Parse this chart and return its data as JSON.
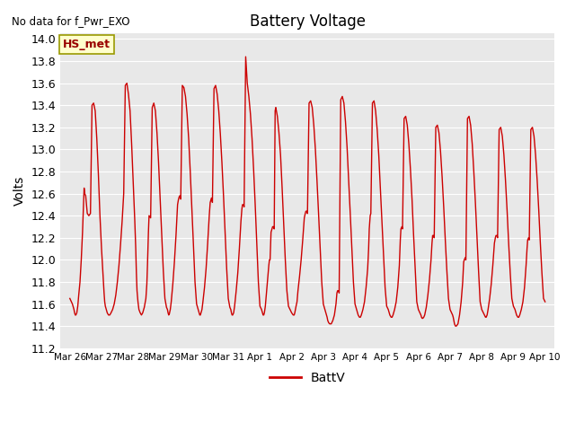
{
  "title": "Battery Voltage",
  "top_left_text": "No data for f_Pwr_EXO",
  "ylabel": "Volts",
  "ylim": [
    11.2,
    14.05
  ],
  "yticks": [
    11.2,
    11.4,
    11.6,
    11.8,
    12.0,
    12.2,
    12.4,
    12.6,
    12.8,
    13.0,
    13.2,
    13.4,
    13.6,
    13.8,
    14.0
  ],
  "line_color": "#cc0000",
  "line_width": 1.0,
  "legend_label": "BattV",
  "hs_met_label": "HS_met",
  "hs_met_bg": "#ffffcc",
  "hs_met_border": "#999900",
  "plot_bg": "#e8e8e8",
  "fig_bg": "#ffffff",
  "x_tick_labels": [
    "Mar 26",
    "Mar 27",
    "Mar 28",
    "Mar 29",
    "Mar 30",
    "Mar 31",
    "Apr 1",
    "Apr 2",
    "Apr 3",
    "Apr 4",
    "Apr 5",
    "Apr 6",
    "Apr 7",
    "Apr 8",
    "Apr 9",
    "Apr 10"
  ],
  "x_tick_positions": [
    0,
    1,
    2,
    3,
    4,
    5,
    6,
    7,
    8,
    9,
    10,
    11,
    12,
    13,
    14,
    15
  ],
  "data_x": [
    0.0,
    0.08,
    0.13,
    0.15,
    0.17,
    0.19,
    0.22,
    0.25,
    0.28,
    0.32,
    0.36,
    0.4,
    0.43,
    0.45,
    0.47,
    0.5,
    0.55,
    0.6,
    0.65,
    0.7,
    0.75,
    0.8,
    0.85,
    0.9,
    0.95,
    1.0,
    1.05,
    1.08,
    1.1,
    1.12,
    1.15,
    1.18,
    1.22,
    1.26,
    1.3,
    1.35,
    1.4,
    1.45,
    1.5,
    1.55,
    1.6,
    1.65,
    1.7,
    1.75,
    1.8,
    1.85,
    1.9,
    1.95,
    2.0,
    2.05,
    2.08,
    2.1,
    2.12,
    2.15,
    2.18,
    2.22,
    2.26,
    2.3,
    2.35,
    2.4,
    2.43,
    2.45,
    2.48,
    2.5,
    2.55,
    2.6,
    2.65,
    2.7,
    2.75,
    2.8,
    2.85,
    2.9,
    2.95,
    3.0,
    3.05,
    3.08,
    3.1,
    3.12,
    3.14,
    3.17,
    3.2,
    3.25,
    3.3,
    3.35,
    3.4,
    3.43,
    3.45,
    3.47,
    3.5,
    3.55,
    3.6,
    3.65,
    3.7,
    3.75,
    3.8,
    3.85,
    3.9,
    3.95,
    4.0,
    4.05,
    4.08,
    4.1,
    4.12,
    4.14,
    4.17,
    4.2,
    4.25,
    4.3,
    4.35,
    4.4,
    4.43,
    4.45,
    4.47,
    4.5,
    4.55,
    4.6,
    4.65,
    4.7,
    4.75,
    4.8,
    4.85,
    4.9,
    4.95,
    5.0,
    5.05,
    5.08,
    5.1,
    5.12,
    5.14,
    5.17,
    5.2,
    5.25,
    5.3,
    5.35,
    5.4,
    5.43,
    5.45,
    5.48,
    5.5,
    5.55,
    5.6,
    5.65,
    5.7,
    5.75,
    5.8,
    5.85,
    5.9,
    5.95,
    6.0,
    6.05,
    6.08,
    6.1,
    6.12,
    6.14,
    6.17,
    6.2,
    6.25,
    6.28,
    6.3,
    6.32,
    6.35,
    6.38,
    6.4,
    6.43,
    6.45,
    6.48,
    6.5,
    6.55,
    6.6,
    6.65,
    6.7,
    6.75,
    6.8,
    6.85,
    6.9,
    6.95,
    7.0,
    7.05,
    7.08,
    7.1,
    7.12,
    7.14,
    7.17,
    7.2,
    7.25,
    7.3,
    7.35,
    7.4,
    7.43,
    7.45,
    7.48,
    7.5,
    7.55,
    7.6,
    7.65,
    7.7,
    7.75,
    7.8,
    7.85,
    7.9,
    7.95,
    8.0,
    8.05,
    8.08,
    8.1,
    8.12,
    8.14,
    8.17,
    8.2,
    8.25,
    8.3,
    8.35,
    8.4,
    8.43,
    8.45,
    8.48,
    8.5,
    8.55,
    8.6,
    8.65,
    8.7,
    8.75,
    8.8,
    8.85,
    8.9,
    8.95,
    9.0,
    9.05,
    9.08,
    9.1,
    9.12,
    9.14,
    9.17,
    9.2,
    9.25,
    9.3,
    9.35,
    9.4,
    9.43,
    9.45,
    9.48,
    9.5,
    9.55,
    9.6,
    9.65,
    9.7,
    9.75,
    9.8,
    9.85,
    9.9,
    9.95,
    10.0,
    10.05,
    10.08,
    10.1,
    10.12,
    10.14,
    10.17,
    10.2,
    10.25,
    10.3,
    10.35,
    10.4,
    10.43,
    10.45,
    10.48,
    10.5,
    10.55,
    10.6,
    10.65,
    10.7,
    10.75,
    10.8,
    10.85,
    10.9,
    10.95,
    11.0,
    11.05,
    11.08,
    11.1,
    11.12,
    11.14,
    11.17,
    11.2,
    11.25,
    11.3,
    11.35,
    11.4,
    11.43,
    11.45,
    11.48,
    11.5,
    11.55,
    11.6,
    11.65,
    11.7,
    11.75,
    11.8,
    11.85,
    11.9,
    11.95,
    12.0,
    12.05,
    12.08,
    12.1,
    12.12,
    12.14,
    12.17,
    12.2,
    12.25,
    12.3,
    12.35,
    12.4,
    12.43,
    12.45,
    12.48,
    12.5,
    12.55,
    12.6,
    12.65,
    12.7,
    12.75,
    12.8,
    12.85,
    12.9,
    12.95,
    13.0,
    13.05,
    13.08,
    13.1,
    13.12,
    13.14,
    13.17,
    13.2,
    13.25,
    13.3,
    13.35,
    13.4,
    13.43,
    13.45,
    13.48,
    13.5,
    13.55,
    13.6,
    13.65,
    13.7,
    13.75,
    13.8,
    13.85,
    13.9,
    13.95,
    14.0,
    14.05,
    14.08,
    14.1,
    14.12,
    14.14,
    14.17,
    14.2,
    14.25,
    14.3,
    14.35,
    14.4,
    14.43,
    14.45,
    14.48,
    14.5,
    14.55,
    14.6,
    14.65,
    14.7,
    14.75,
    14.8,
    14.85,
    14.9,
    14.95,
    15.0
  ],
  "data_y": [
    11.65,
    11.6,
    11.55,
    11.52,
    11.5,
    11.5,
    11.52,
    11.58,
    11.68,
    11.8,
    12.0,
    12.25,
    12.5,
    12.65,
    12.6,
    12.58,
    12.42,
    12.4,
    12.42,
    13.4,
    13.42,
    13.35,
    13.1,
    12.78,
    12.4,
    12.1,
    11.85,
    11.7,
    11.62,
    11.58,
    11.55,
    11.52,
    11.5,
    11.5,
    11.52,
    11.55,
    11.6,
    11.68,
    11.8,
    11.95,
    12.14,
    12.35,
    12.6,
    13.58,
    13.6,
    13.5,
    13.35,
    13.05,
    12.7,
    12.35,
    12.1,
    11.88,
    11.72,
    11.62,
    11.55,
    11.52,
    11.5,
    11.52,
    11.57,
    11.65,
    11.78,
    11.95,
    12.25,
    12.4,
    12.38,
    13.38,
    13.42,
    13.35,
    13.15,
    12.88,
    12.55,
    12.2,
    11.9,
    11.65,
    11.57,
    11.55,
    11.52,
    11.5,
    11.51,
    11.55,
    11.62,
    11.78,
    11.98,
    12.22,
    12.5,
    12.55,
    12.57,
    12.58,
    12.55,
    13.58,
    13.56,
    13.48,
    13.32,
    13.1,
    12.8,
    12.48,
    12.14,
    11.8,
    11.6,
    11.55,
    11.52,
    11.5,
    11.5,
    11.52,
    11.55,
    11.62,
    11.75,
    11.92,
    12.15,
    12.4,
    12.52,
    12.54,
    12.56,
    12.52,
    13.55,
    13.58,
    13.5,
    13.35,
    13.14,
    12.88,
    12.58,
    12.25,
    11.92,
    11.65,
    11.57,
    11.55,
    11.52,
    11.5,
    11.5,
    11.52,
    11.58,
    11.72,
    11.88,
    12.1,
    12.35,
    12.46,
    12.5,
    12.5,
    12.48,
    13.84,
    13.6,
    13.48,
    13.32,
    13.1,
    12.82,
    12.5,
    12.15,
    11.8,
    11.58,
    11.55,
    11.52,
    11.5,
    11.5,
    11.52,
    11.58,
    11.68,
    11.85,
    11.95,
    12.0,
    12.0,
    12.25,
    12.28,
    12.3,
    12.3,
    12.28,
    13.35,
    13.38,
    13.3,
    13.15,
    12.95,
    12.65,
    12.32,
    12.0,
    11.72,
    11.58,
    11.55,
    11.52,
    11.5,
    11.5,
    11.52,
    11.55,
    11.58,
    11.62,
    11.72,
    11.85,
    12.0,
    12.18,
    12.38,
    12.42,
    12.44,
    12.44,
    12.42,
    13.42,
    13.44,
    13.38,
    13.22,
    13.0,
    12.72,
    12.42,
    12.1,
    11.8,
    11.6,
    11.55,
    11.52,
    11.5,
    11.48,
    11.45,
    11.43,
    11.42,
    11.42,
    11.45,
    11.5,
    11.6,
    11.7,
    11.72,
    11.72,
    11.7,
    13.45,
    13.48,
    13.42,
    13.25,
    13.02,
    12.72,
    12.42,
    12.1,
    11.8,
    11.6,
    11.55,
    11.52,
    11.5,
    11.49,
    11.48,
    11.48,
    11.5,
    11.55,
    11.62,
    11.75,
    11.92,
    12.1,
    12.28,
    12.4,
    12.42,
    13.42,
    13.44,
    13.35,
    13.18,
    12.95,
    12.65,
    12.35,
    12.05,
    11.75,
    11.58,
    11.55,
    11.52,
    11.5,
    11.49,
    11.48,
    11.48,
    11.5,
    11.55,
    11.62,
    11.75,
    11.95,
    12.18,
    12.28,
    12.3,
    12.28,
    13.28,
    13.3,
    13.22,
    13.05,
    12.82,
    12.55,
    12.22,
    11.92,
    11.62,
    11.55,
    11.52,
    11.5,
    11.48,
    11.47,
    11.47,
    11.48,
    11.5,
    11.57,
    11.68,
    11.82,
    12.0,
    12.15,
    12.22,
    12.22,
    12.2,
    13.2,
    13.22,
    13.15,
    12.98,
    12.75,
    12.48,
    12.18,
    11.9,
    11.65,
    11.55,
    11.52,
    11.5,
    11.48,
    11.45,
    11.42,
    11.4,
    11.4,
    11.42,
    11.5,
    11.62,
    11.8,
    11.98,
    12.0,
    12.02,
    12.0,
    13.28,
    13.3,
    13.22,
    13.05,
    12.8,
    12.52,
    12.2,
    11.9,
    11.62,
    11.55,
    11.52,
    11.5,
    11.49,
    11.48,
    11.48,
    11.5,
    11.55,
    11.65,
    11.78,
    11.95,
    12.15,
    12.2,
    12.22,
    12.22,
    12.2,
    13.18,
    13.2,
    13.12,
    12.95,
    12.72,
    12.45,
    12.15,
    11.88,
    11.65,
    11.58,
    11.55,
    11.52,
    11.5,
    11.49,
    11.48,
    11.48,
    11.5,
    11.55,
    11.62,
    11.75,
    11.95,
    12.1,
    12.18,
    12.2,
    12.18,
    13.18,
    13.2,
    13.12,
    12.95,
    12.72,
    12.45,
    12.15,
    11.88,
    11.65,
    11.62
  ]
}
